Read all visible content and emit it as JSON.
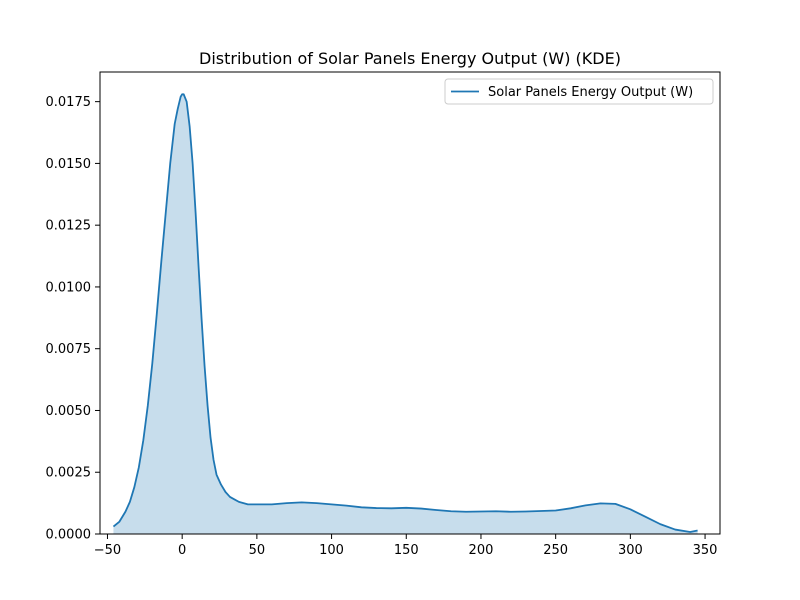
{
  "chart_data": {
    "type": "area",
    "title": "Distribution of Solar Panels Energy Output (W) (KDE)",
    "xlabel": "",
    "ylabel": "",
    "xlim": [
      -55,
      360
    ],
    "ylim": [
      0,
      0.0187
    ],
    "x_ticks": [
      -50,
      0,
      50,
      100,
      150,
      200,
      250,
      300,
      350
    ],
    "x_tick_labels": [
      "−50",
      "0",
      "50",
      "100",
      "150",
      "200",
      "250",
      "300",
      "350"
    ],
    "y_ticks": [
      0,
      0.0025,
      0.005,
      0.0075,
      0.01,
      0.0125,
      0.015,
      0.0175
    ],
    "y_tick_labels": [
      "0.0000",
      "0.0025",
      "0.0050",
      "0.0075",
      "0.0100",
      "0.0125",
      "0.0150",
      "0.0175"
    ],
    "grid": false,
    "legend_position": "top-right",
    "series": [
      {
        "name": "Solar Panels Energy Output (W)",
        "color": "#1f77b4",
        "fill_color": "#1f77b4",
        "fill_opacity": 0.25,
        "x": [
          -46,
          -42,
          -38,
          -35,
          -32,
          -29,
          -26,
          -23,
          -20,
          -17,
          -14,
          -11,
          -8,
          -5,
          -3,
          -1,
          0,
          1,
          3,
          5,
          7,
          9,
          11,
          13,
          15,
          17,
          19,
          21,
          23,
          26,
          29,
          32,
          35,
          38,
          41,
          44,
          47,
          50,
          55,
          60,
          70,
          80,
          90,
          100,
          110,
          120,
          130,
          140,
          150,
          160,
          170,
          180,
          190,
          200,
          210,
          220,
          230,
          240,
          250,
          260,
          270,
          280,
          290,
          300,
          310,
          320,
          330,
          340,
          345
        ],
        "y": [
          0.0003,
          0.0005,
          0.0009,
          0.0013,
          0.0019,
          0.0027,
          0.0038,
          0.0052,
          0.0069,
          0.0089,
          0.011,
          0.013,
          0.015,
          0.0166,
          0.0172,
          0.0177,
          0.0178,
          0.0178,
          0.0175,
          0.0165,
          0.015,
          0.013,
          0.0108,
          0.0087,
          0.0068,
          0.0052,
          0.0039,
          0.003,
          0.0024,
          0.002,
          0.0017,
          0.0015,
          0.0014,
          0.0013,
          0.00125,
          0.0012,
          0.0012,
          0.0012,
          0.0012,
          0.0012,
          0.00125,
          0.00128,
          0.00125,
          0.0012,
          0.00115,
          0.00108,
          0.00105,
          0.00104,
          0.00106,
          0.00103,
          0.00097,
          0.00092,
          0.0009,
          0.00091,
          0.00092,
          0.0009,
          0.00091,
          0.00093,
          0.00095,
          0.00104,
          0.00116,
          0.00124,
          0.00122,
          0.001,
          0.0007,
          0.0004,
          0.00018,
          8e-05,
          0.00014
        ]
      }
    ]
  }
}
